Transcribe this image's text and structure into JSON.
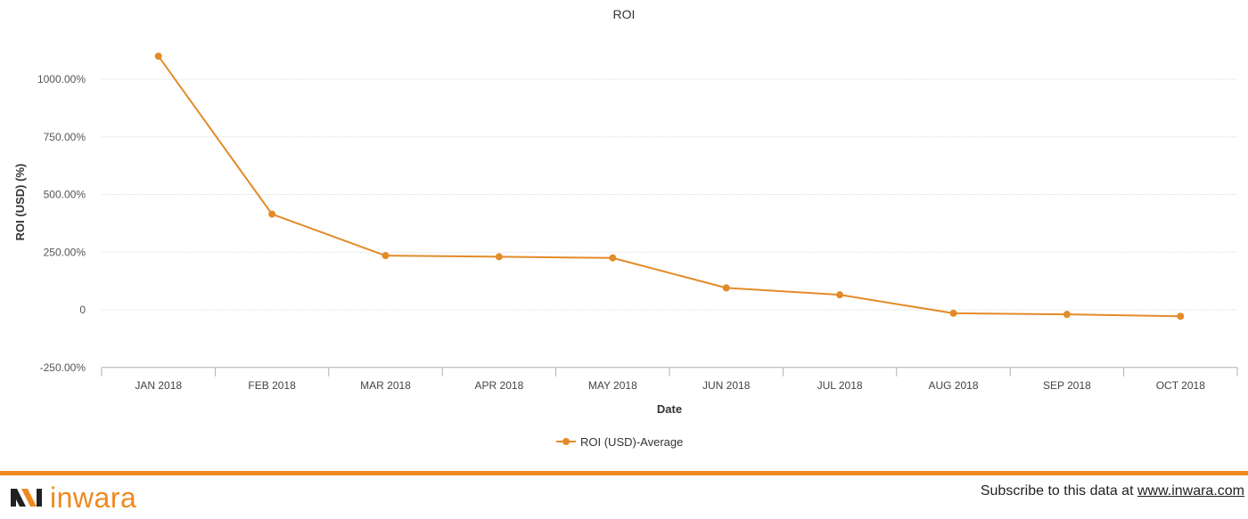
{
  "chart_data": {
    "type": "line",
    "title": "ROI",
    "xlabel": "Date",
    "ylabel": "ROI (USD) (%)",
    "categories": [
      "JAN 2018",
      "FEB 2018",
      "MAR 2018",
      "APR 2018",
      "MAY 2018",
      "JUN 2018",
      "JUL 2018",
      "AUG 2018",
      "SEP 2018",
      "OCT 2018"
    ],
    "series": [
      {
        "name": "ROI (USD)-Average",
        "values": [
          1100,
          415,
          235,
          230,
          225,
          95,
          65,
          -15,
          -20,
          -28
        ]
      }
    ],
    "yticks": [
      -250,
      0,
      250,
      500,
      750,
      1000
    ],
    "ytick_labels": [
      "-250.00%",
      "0",
      "250.00%",
      "500.00%",
      "750.00%",
      "1000.00%"
    ],
    "ylim": [
      -250,
      1100
    ],
    "grid": true,
    "legend": "bottom-center",
    "line_color": "#e38b29"
  },
  "footer": {
    "brand": "inwara",
    "subscribe_text": "Subscribe to this data at ",
    "subscribe_link": "www.inwara.com",
    "accent_color": "#ee8a1f"
  }
}
